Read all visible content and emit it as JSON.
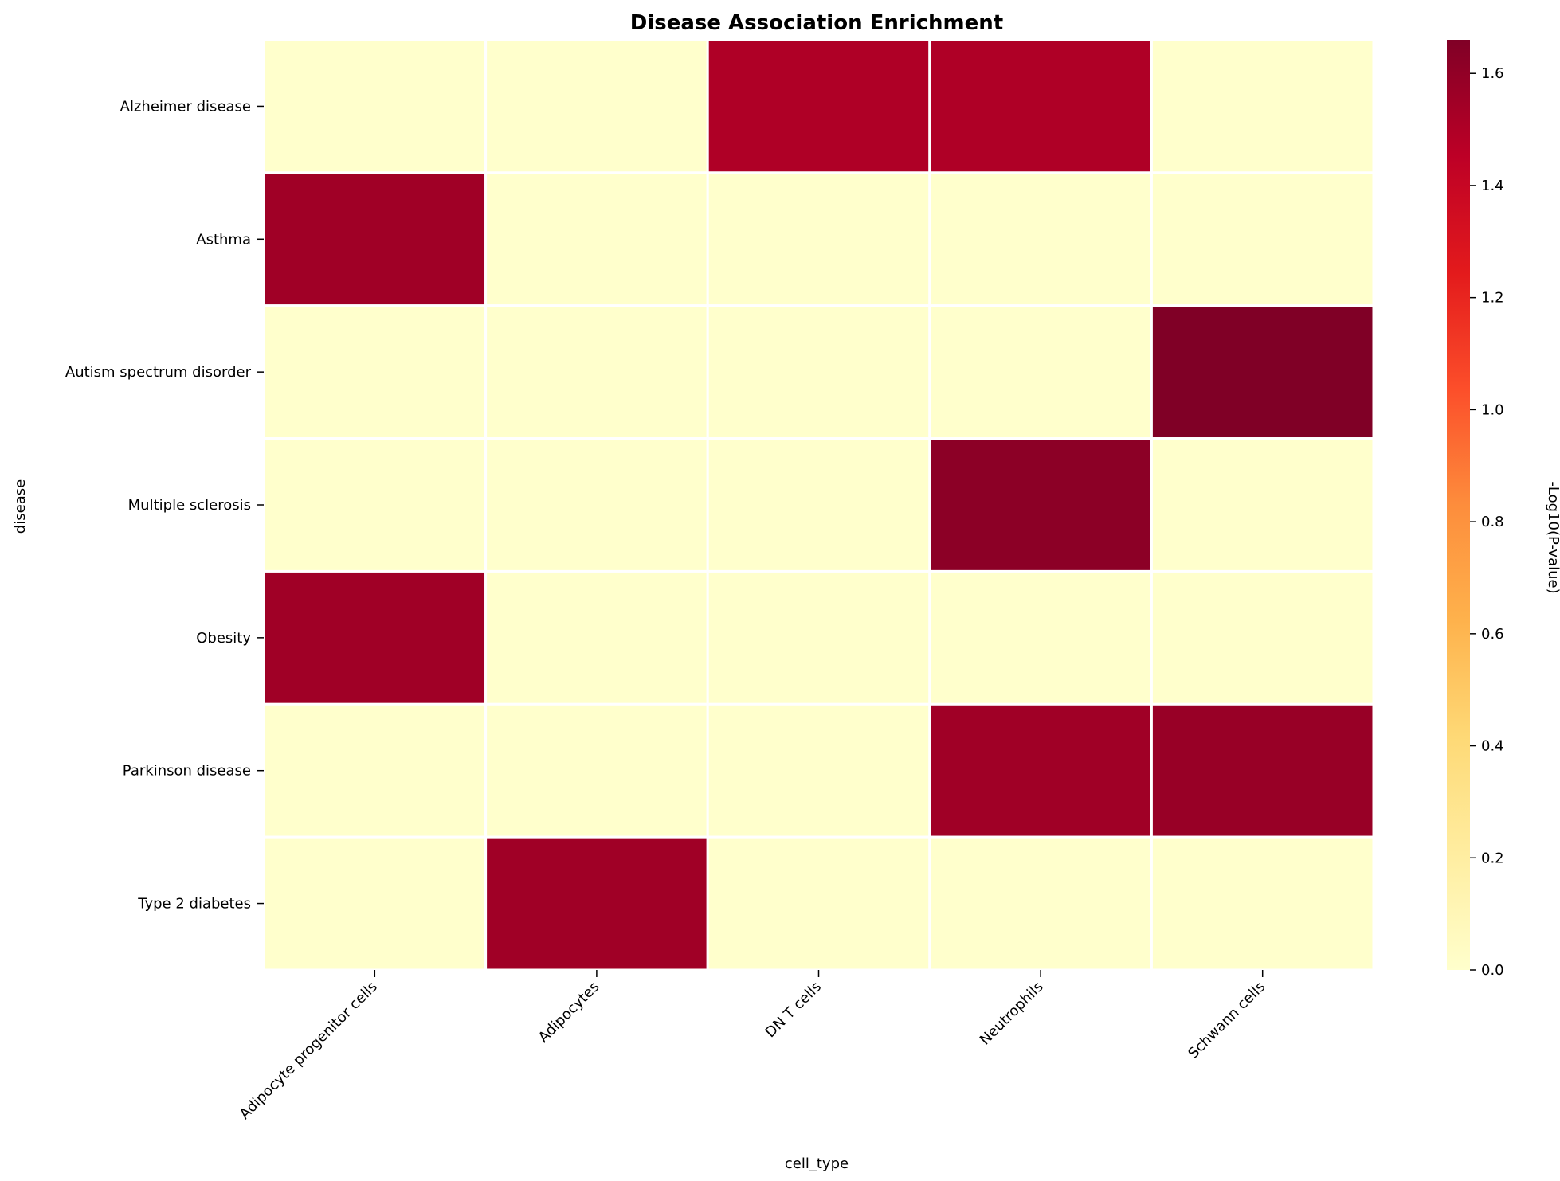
{
  "chart_data": {
    "type": "heatmap",
    "title": "Disease Association Enrichment",
    "xlabel": "cell_type",
    "ylabel": "disease",
    "x_categories": [
      "Adipocyte progenitor cells",
      "Adipocytes",
      "DN T cells",
      "Neutrophils",
      "Schwann cells"
    ],
    "y_categories": [
      "Alzheimer disease",
      "Asthma",
      "Autism spectrum disorder",
      "Multiple sclerosis",
      "Obesity",
      "Parkinson disease",
      "Type 2 diabetes"
    ],
    "values": [
      [
        0,
        0,
        1.5,
        1.5,
        0
      ],
      [
        1.55,
        0,
        0,
        0,
        0
      ],
      [
        0,
        0,
        0,
        0,
        1.66
      ],
      [
        0,
        0,
        0,
        1.62,
        0
      ],
      [
        1.55,
        0,
        0,
        0,
        0
      ],
      [
        0,
        0,
        0,
        1.55,
        1.58
      ],
      [
        0,
        1.55,
        0,
        0,
        0
      ]
    ],
    "colorbar": {
      "label": "-Log10(P-value)",
      "range": [
        0,
        1.66
      ],
      "ticks": [
        0.0,
        0.2,
        0.4,
        0.6,
        0.8,
        1.0,
        1.2,
        1.4,
        1.6
      ],
      "tick_labels": [
        "0.0",
        "0.2",
        "0.4",
        "0.6",
        "0.8",
        "1.0",
        "1.2",
        "1.4",
        "1.6"
      ],
      "colormap": "YlOrRd",
      "colormap_stops": [
        "#ffffcc",
        "#ffeda0",
        "#fed976",
        "#feb24c",
        "#fd8d3c",
        "#fc4e2a",
        "#e31a1c",
        "#bd0026",
        "#800026"
      ]
    },
    "grid": false
  }
}
